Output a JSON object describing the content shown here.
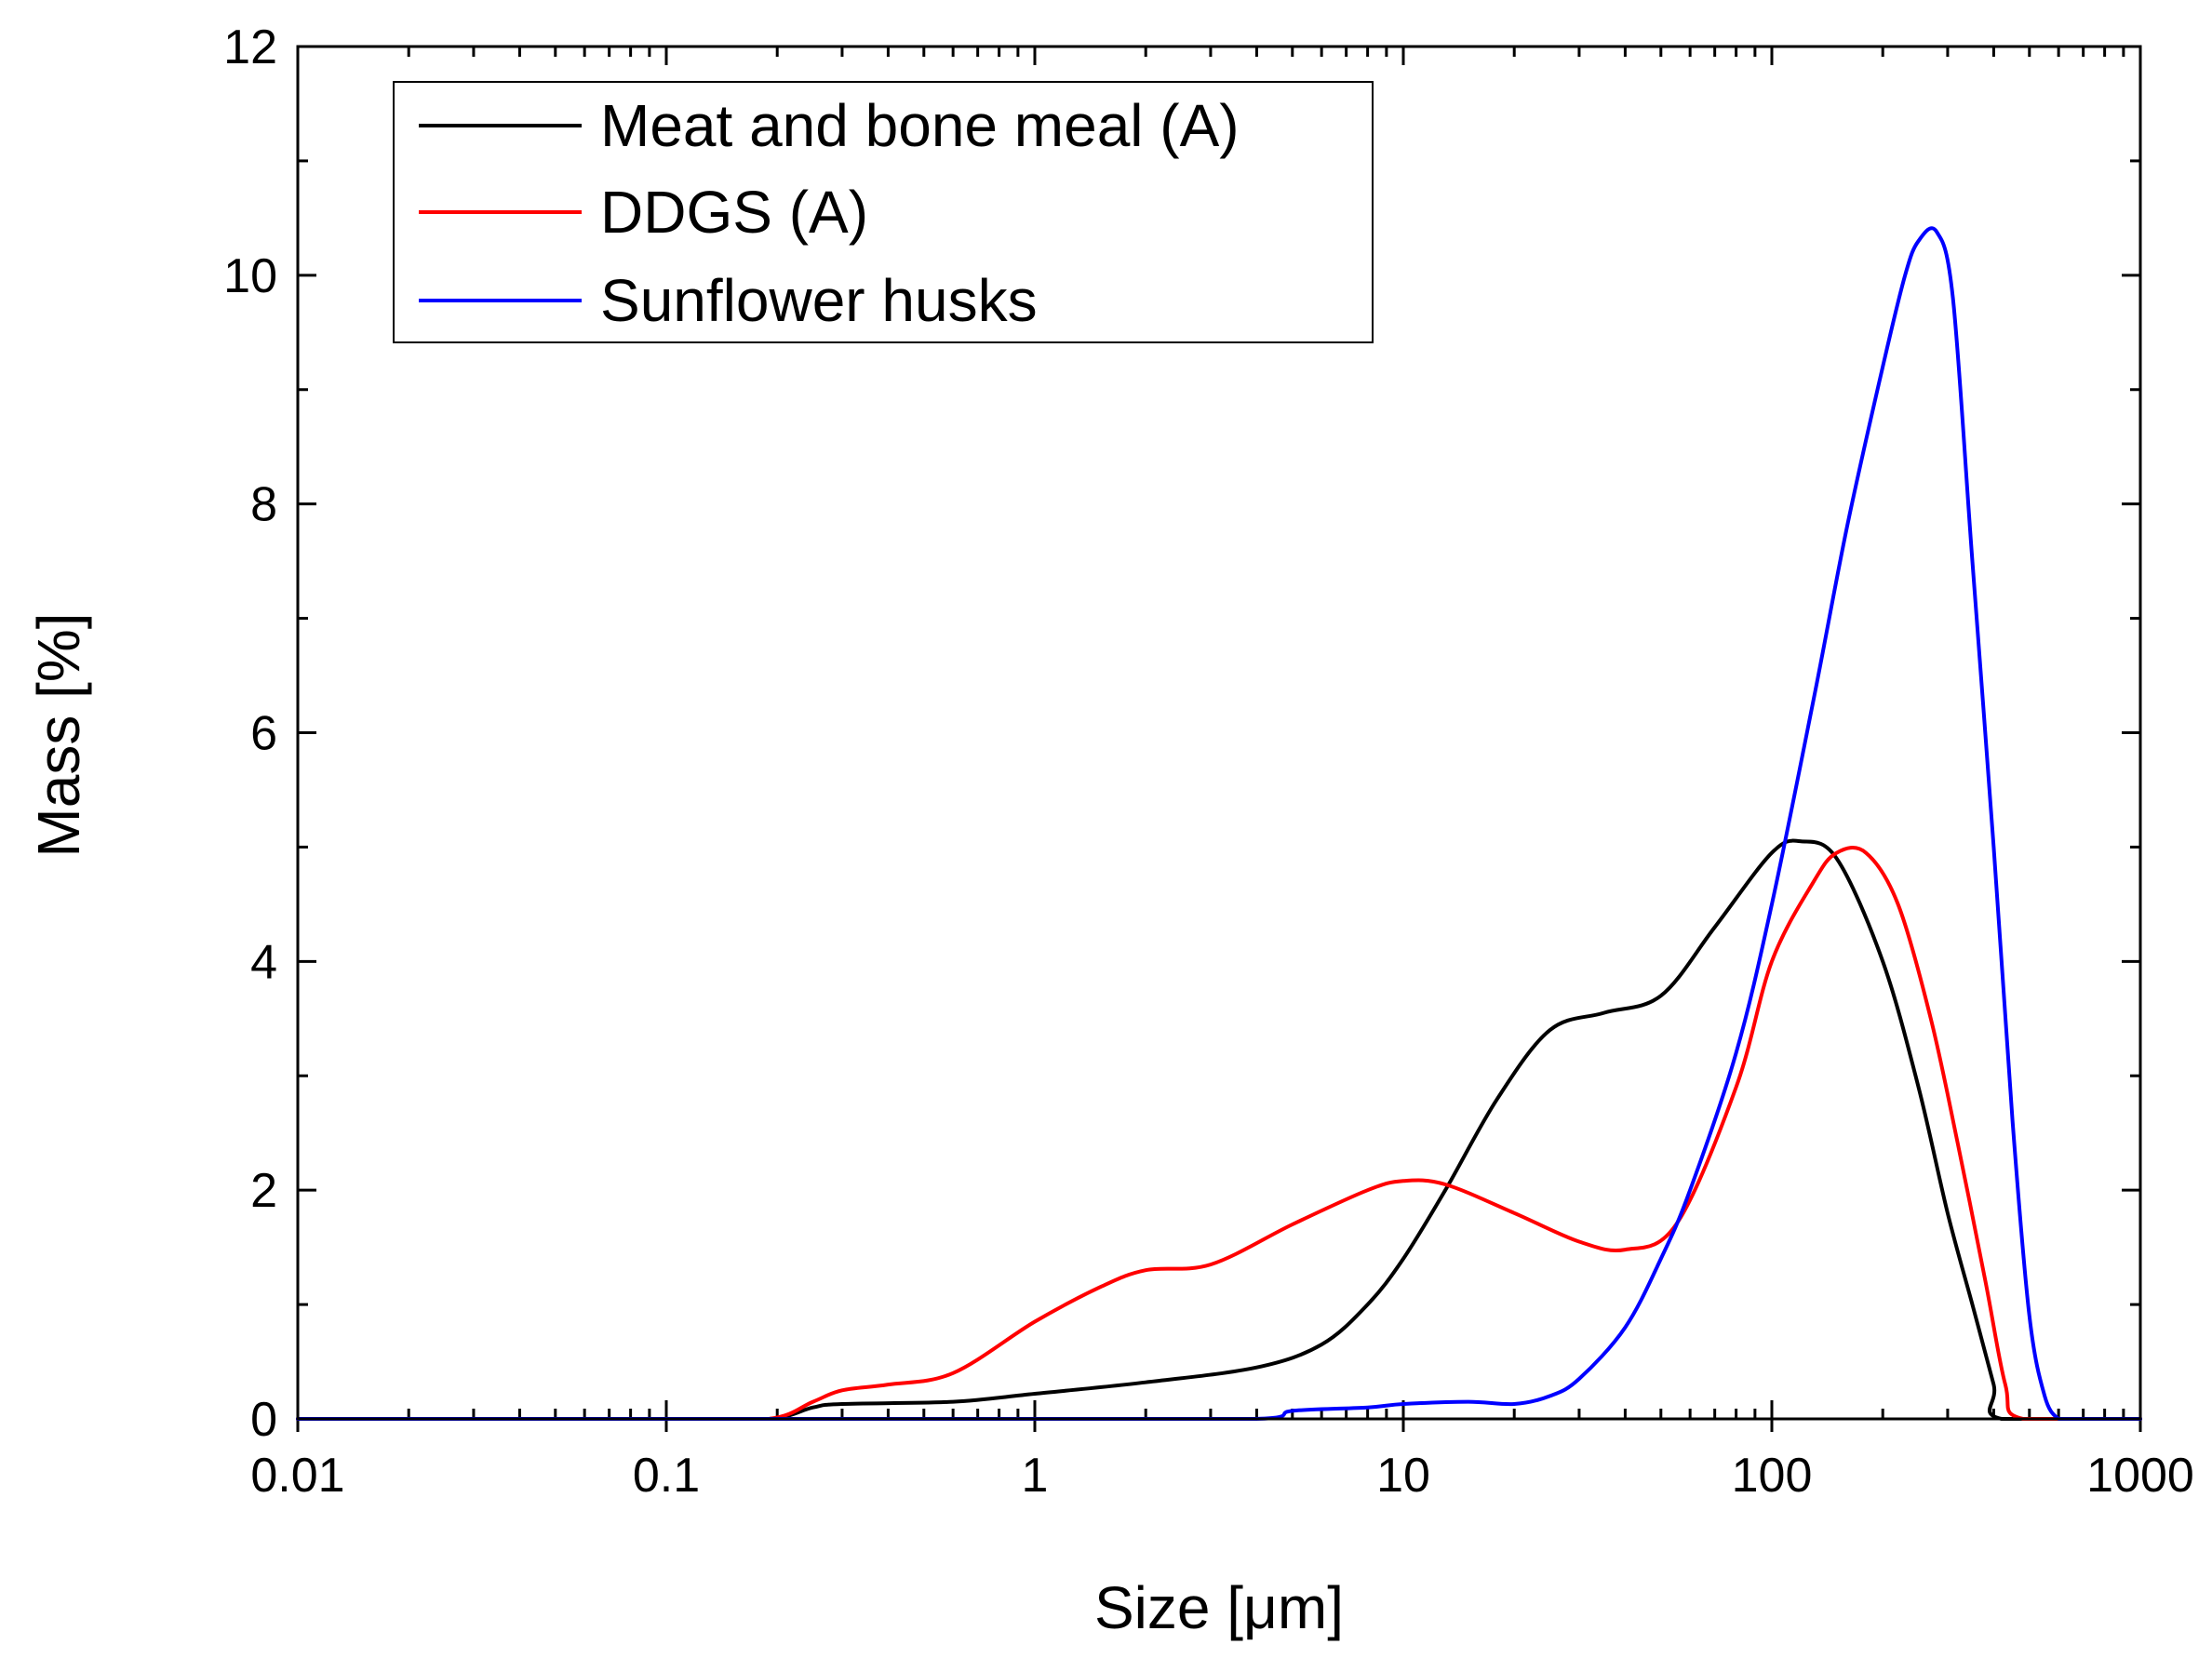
{
  "chart_data": {
    "type": "line",
    "title": "",
    "xlabel": "Size [μm]",
    "ylabel": "Mass [%]",
    "xscale": "log",
    "xlim": [
      0.01,
      1000
    ],
    "ylim": [
      0,
      12
    ],
    "x_ticks": [
      0.01,
      0.1,
      1,
      10,
      100,
      1000
    ],
    "x_tick_labels": [
      "0.01",
      "0.1",
      "1",
      "10",
      "100",
      "1000"
    ],
    "y_ticks": [
      0,
      2,
      4,
      6,
      8,
      10,
      12
    ],
    "y_tick_labels": [
      "0",
      "2",
      "4",
      "6",
      "8",
      "10",
      "12"
    ],
    "legend_position": "top-left",
    "series": [
      {
        "name": "Meat and bone meal (A)",
        "color": "#000000",
        "x": [
          0.01,
          0.1,
          0.19,
          0.25,
          0.3,
          0.6,
          1,
          2,
          4,
          6,
          8,
          10,
          13,
          18,
          25,
          35,
          50,
          70,
          100,
          120,
          150,
          200,
          250,
          300,
          350,
          400,
          420,
          1000
        ],
        "y": [
          0,
          0,
          0,
          0.1,
          0.13,
          0.15,
          0.22,
          0.32,
          0.45,
          0.65,
          1.0,
          1.4,
          2.0,
          2.8,
          3.4,
          3.55,
          3.7,
          4.3,
          4.95,
          5.05,
          4.9,
          4.0,
          2.9,
          1.8,
          1.0,
          0.3,
          0,
          0
        ]
      },
      {
        "name": "DDGS (A)",
        "color": "#ff0000",
        "x": [
          0.01,
          0.1,
          0.19,
          0.25,
          0.3,
          0.4,
          0.6,
          1,
          1.5,
          2,
          3,
          5,
          8,
          10,
          13,
          20,
          30,
          40,
          55,
          80,
          100,
          130,
          150,
          180,
          220,
          270,
          320,
          380,
          430,
          480,
          1000
        ],
        "y": [
          0,
          0,
          0,
          0.15,
          0.25,
          0.3,
          0.4,
          0.85,
          1.15,
          1.3,
          1.35,
          1.7,
          2.0,
          2.08,
          2.05,
          1.8,
          1.55,
          1.48,
          1.7,
          2.9,
          4.0,
          4.7,
          4.95,
          4.95,
          4.5,
          3.5,
          2.4,
          1.2,
          0.3,
          0,
          0
        ]
      },
      {
        "name": "Sunflower husks",
        "color": "#0000ff",
        "x": [
          0.01,
          0.1,
          1,
          4,
          5,
          8,
          10,
          15,
          20,
          25,
          30,
          40,
          50,
          60,
          80,
          100,
          130,
          160,
          200,
          230,
          250,
          280,
          310,
          350,
          400,
          450,
          500,
          550,
          600,
          650,
          1000
        ],
        "y": [
          0,
          0,
          0,
          0,
          0.07,
          0.1,
          0.13,
          0.15,
          0.13,
          0.2,
          0.35,
          0.8,
          1.4,
          2.0,
          3.2,
          4.5,
          6.3,
          7.8,
          9.2,
          10.0,
          10.3,
          10.38,
          9.8,
          7.5,
          5.0,
          2.6,
          0.9,
          0.2,
          0,
          0,
          0
        ]
      }
    ]
  }
}
